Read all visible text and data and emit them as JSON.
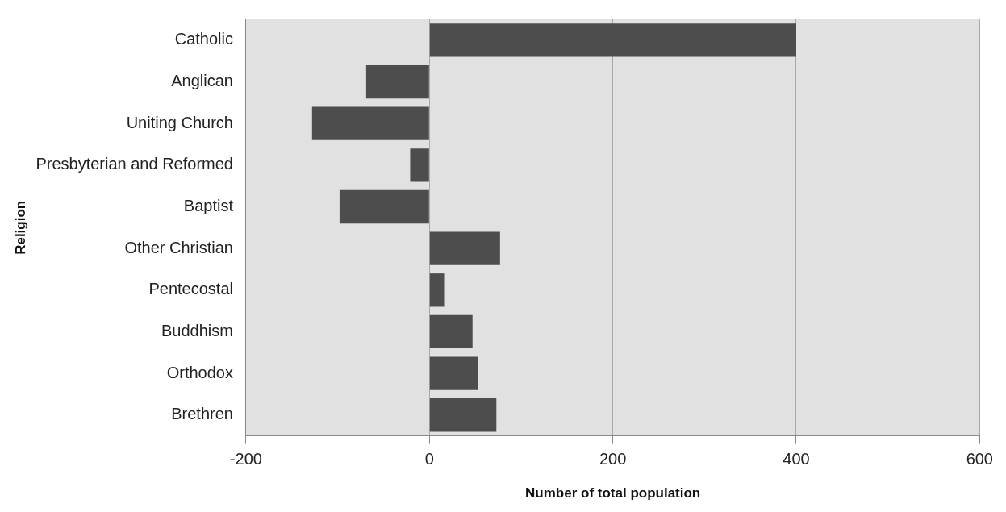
{
  "chart_data": {
    "type": "bar",
    "orientation": "horizontal",
    "xlabel": "Number of total population",
    "ylabel": "Religion",
    "categories": [
      "Catholic",
      "Anglican",
      "Uniting Church",
      "Presbyterian and Reformed",
      "Baptist",
      "Other Christian",
      "Pentecostal",
      "Buddhism",
      "Orthodox",
      "Brethren"
    ],
    "values": [
      400,
      -69,
      -128,
      -21,
      -98,
      77,
      16,
      47,
      53,
      73
    ],
    "color": "#4d4d4d",
    "xlim": [
      -200,
      600
    ],
    "xticks": [
      -200,
      0,
      200,
      400,
      600
    ],
    "grid": "x",
    "legend": false
  }
}
